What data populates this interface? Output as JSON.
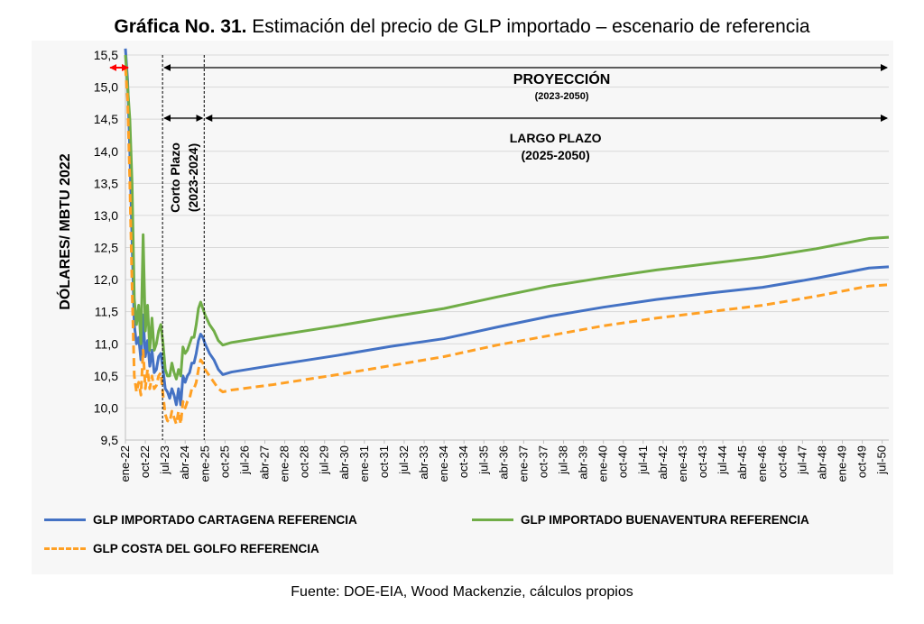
{
  "title": {
    "bold": "Gráfica No. 31.",
    "rest": " Estimación del precio de GLP importado – escenario de referencia"
  },
  "source": "Fuente: DOE-EIA, Wood Mackenzie, cálculos propios",
  "annotations": {
    "proyeccion": "PROYECCIÓN",
    "proyeccion_range": "(2023-2050)",
    "largo_plazo": "LARGO PLAZO",
    "largo_plazo_range": "(2025-2050)",
    "corto_plazo": "Corto Plazo",
    "corto_plazo_range": "(2023-2024)"
  },
  "colors": {
    "cartagena": "#4472c4",
    "buenaventura": "#70ad47",
    "costa_golfo": "#ffa024",
    "historical_arrow": "#ff0000"
  },
  "chart_data": {
    "type": "line",
    "ylabel": "DÓLARES/ MBTU 2022",
    "ylim": [
      9.5,
      15.5
    ],
    "yticks": [
      "9,5",
      "10,0",
      "10,5",
      "11,0",
      "11,5",
      "12,0",
      "12,5",
      "13,0",
      "13,5",
      "14,0",
      "14,5",
      "15,0",
      "15,5"
    ],
    "xlim": [
      "ene-22",
      "oct-50"
    ],
    "xticks": [
      "ene-22",
      "oct-22",
      "jul-23",
      "abr-24",
      "ene-25",
      "oct-25",
      "jul-26",
      "abr-27",
      "ene-28",
      "oct-28",
      "jul-29",
      "abr-30",
      "ene-31",
      "oct-31",
      "jul-32",
      "abr-33",
      "ene-34",
      "oct-34",
      "jul-35",
      "abr-36",
      "ene-37",
      "oct-37",
      "jul-38",
      "abr-39",
      "ene-40",
      "oct-40",
      "jul-41",
      "abr-42",
      "ene-43",
      "oct-43",
      "jul-44",
      "abr-45",
      "ene-46",
      "oct-46",
      "jul-47",
      "abr-48",
      "ene-49",
      "oct-49",
      "jul-50"
    ],
    "grid": true,
    "legend_position": "bottom",
    "series": [
      {
        "name": "GLP IMPORTADO CARTAGENA REFERENCIA",
        "color": "#4472c4",
        "dash": "solid",
        "points": [
          [
            "ene-22",
            15.6
          ],
          [
            "feb-22",
            15.1
          ],
          [
            "mar-22",
            14.0
          ],
          [
            "abr-22",
            12.6
          ],
          [
            "may-22",
            11.3
          ],
          [
            "jun-22",
            11.0
          ],
          [
            "jul-22",
            11.1
          ],
          [
            "ago-22",
            10.75
          ],
          [
            "sep-22",
            11.45
          ],
          [
            "oct-22",
            10.8
          ],
          [
            "nov-22",
            11.05
          ],
          [
            "dic-22",
            10.65
          ],
          [
            "ene-23",
            10.9
          ],
          [
            "feb-23",
            10.55
          ],
          [
            "mar-23",
            10.6
          ],
          [
            "abr-23",
            10.8
          ],
          [
            "may-23",
            10.85
          ],
          [
            "jun-23",
            10.6
          ],
          [
            "jul-23",
            10.3
          ],
          [
            "ago-23",
            10.25
          ],
          [
            "sep-23",
            10.15
          ],
          [
            "oct-23",
            10.3
          ],
          [
            "nov-23",
            10.2
          ],
          [
            "dic-23",
            10.05
          ],
          [
            "ene-24",
            10.3
          ],
          [
            "feb-24",
            10.05
          ],
          [
            "mar-24",
            10.5
          ],
          [
            "abr-24",
            10.4
          ],
          [
            "may-24",
            10.5
          ],
          [
            "jun-24",
            10.55
          ],
          [
            "jul-24",
            10.7
          ],
          [
            "ago-24",
            10.7
          ],
          [
            "sep-24",
            10.85
          ],
          [
            "oct-24",
            11.05
          ],
          [
            "nov-24",
            11.15
          ],
          [
            "dic-24",
            11.1
          ],
          [
            "ene-25",
            11.0
          ],
          [
            "mar-25",
            10.85
          ],
          [
            "may-25",
            10.75
          ],
          [
            "jul-25",
            10.6
          ],
          [
            "sep-25",
            10.52
          ],
          [
            "ene-26",
            10.56
          ],
          [
            "jul-27",
            10.66
          ],
          [
            "ene-30",
            10.82
          ],
          [
            "ene-32",
            10.96
          ],
          [
            "ene-34",
            11.08
          ],
          [
            "ene-36",
            11.26
          ],
          [
            "ene-38",
            11.43
          ],
          [
            "ene-40",
            11.57
          ],
          [
            "ene-42",
            11.69
          ],
          [
            "ene-44",
            11.79
          ],
          [
            "ene-46",
            11.88
          ],
          [
            "ene-48",
            12.02
          ],
          [
            "ene-50",
            12.18
          ],
          [
            "oct-50",
            12.2
          ]
        ]
      },
      {
        "name": "GLP IMPORTADO BUENAVENTURA REFERENCIA",
        "color": "#70ad47",
        "dash": "solid",
        "points": [
          [
            "ene-22",
            15.5
          ],
          [
            "feb-22",
            15.0
          ],
          [
            "mar-22",
            14.5
          ],
          [
            "abr-22",
            13.5
          ],
          [
            "may-22",
            11.7
          ],
          [
            "jun-22",
            11.3
          ],
          [
            "jul-22",
            11.6
          ],
          [
            "ago-22",
            11.0
          ],
          [
            "sep-22",
            12.7
          ],
          [
            "oct-22",
            11.2
          ],
          [
            "nov-22",
            11.6
          ],
          [
            "dic-22",
            10.9
          ],
          [
            "ene-23",
            11.4
          ],
          [
            "feb-23",
            10.9
          ],
          [
            "mar-23",
            11.0
          ],
          [
            "abr-23",
            11.2
          ],
          [
            "may-23",
            11.3
          ],
          [
            "jun-23",
            11.0
          ],
          [
            "jul-23",
            10.6
          ],
          [
            "ago-23",
            10.5
          ],
          [
            "sep-23",
            10.5
          ],
          [
            "oct-23",
            10.7
          ],
          [
            "nov-23",
            10.55
          ],
          [
            "dic-23",
            10.45
          ],
          [
            "ene-24",
            10.6
          ],
          [
            "feb-24",
            10.5
          ],
          [
            "mar-24",
            10.95
          ],
          [
            "abr-24",
            10.85
          ],
          [
            "may-24",
            10.9
          ],
          [
            "jun-24",
            11.0
          ],
          [
            "jul-24",
            11.1
          ],
          [
            "ago-24",
            11.1
          ],
          [
            "sep-24",
            11.3
          ],
          [
            "oct-24",
            11.55
          ],
          [
            "nov-24",
            11.65
          ],
          [
            "dic-24",
            11.55
          ],
          [
            "ene-25",
            11.45
          ],
          [
            "mar-25",
            11.3
          ],
          [
            "may-25",
            11.2
          ],
          [
            "jul-25",
            11.05
          ],
          [
            "sep-25",
            10.98
          ],
          [
            "ene-26",
            11.02
          ],
          [
            "jul-27",
            11.12
          ],
          [
            "ene-30",
            11.28
          ],
          [
            "ene-32",
            11.42
          ],
          [
            "ene-34",
            11.55
          ],
          [
            "ene-36",
            11.73
          ],
          [
            "ene-38",
            11.9
          ],
          [
            "ene-40",
            12.03
          ],
          [
            "ene-42",
            12.15
          ],
          [
            "ene-44",
            12.25
          ],
          [
            "ene-46",
            12.35
          ],
          [
            "ene-48",
            12.48
          ],
          [
            "ene-50",
            12.64
          ],
          [
            "oct-50",
            12.66
          ]
        ]
      },
      {
        "name": "GLP COSTA DEL GOLFO REFERENCIA",
        "color": "#ffa024",
        "dash": "dashed",
        "points": [
          [
            "ene-22",
            15.3
          ],
          [
            "feb-22",
            14.8
          ],
          [
            "mar-22",
            13.5
          ],
          [
            "abr-22",
            11.9
          ],
          [
            "may-22",
            10.5
          ],
          [
            "jun-22",
            10.25
          ],
          [
            "jul-22",
            10.4
          ],
          [
            "ago-22",
            10.2
          ],
          [
            "sep-22",
            10.9
          ],
          [
            "oct-22",
            10.3
          ],
          [
            "nov-22",
            10.6
          ],
          [
            "dic-22",
            10.3
          ],
          [
            "ene-23",
            10.5
          ],
          [
            "feb-23",
            10.3
          ],
          [
            "mar-23",
            10.35
          ],
          [
            "abr-23",
            10.5
          ],
          [
            "may-23",
            10.55
          ],
          [
            "jun-23",
            10.2
          ],
          [
            "jul-23",
            9.9
          ],
          [
            "ago-23",
            9.8
          ],
          [
            "sep-23",
            9.78
          ],
          [
            "oct-23",
            9.95
          ],
          [
            "nov-23",
            9.85
          ],
          [
            "dic-23",
            9.75
          ],
          [
            "ene-24",
            9.95
          ],
          [
            "feb-24",
            9.75
          ],
          [
            "mar-24",
            10.1
          ],
          [
            "abr-24",
            10.0
          ],
          [
            "may-24",
            10.1
          ],
          [
            "jun-24",
            10.15
          ],
          [
            "jul-24",
            10.3
          ],
          [
            "ago-24",
            10.3
          ],
          [
            "sep-24",
            10.4
          ],
          [
            "oct-24",
            10.6
          ],
          [
            "nov-24",
            10.75
          ],
          [
            "dic-24",
            10.7
          ],
          [
            "ene-25",
            10.6
          ],
          [
            "mar-25",
            10.5
          ],
          [
            "may-25",
            10.4
          ],
          [
            "jul-25",
            10.3
          ],
          [
            "sep-25",
            10.25
          ],
          [
            "ene-26",
            10.28
          ],
          [
            "jul-27",
            10.36
          ],
          [
            "ene-30",
            10.52
          ],
          [
            "ene-32",
            10.66
          ],
          [
            "ene-34",
            10.8
          ],
          [
            "ene-36",
            10.98
          ],
          [
            "ene-38",
            11.13
          ],
          [
            "ene-40",
            11.28
          ],
          [
            "ene-42",
            11.4
          ],
          [
            "ene-44",
            11.5
          ],
          [
            "ene-46",
            11.6
          ],
          [
            "ene-48",
            11.74
          ],
          [
            "ene-50",
            11.9
          ],
          [
            "oct-50",
            11.92
          ]
        ]
      }
    ]
  }
}
